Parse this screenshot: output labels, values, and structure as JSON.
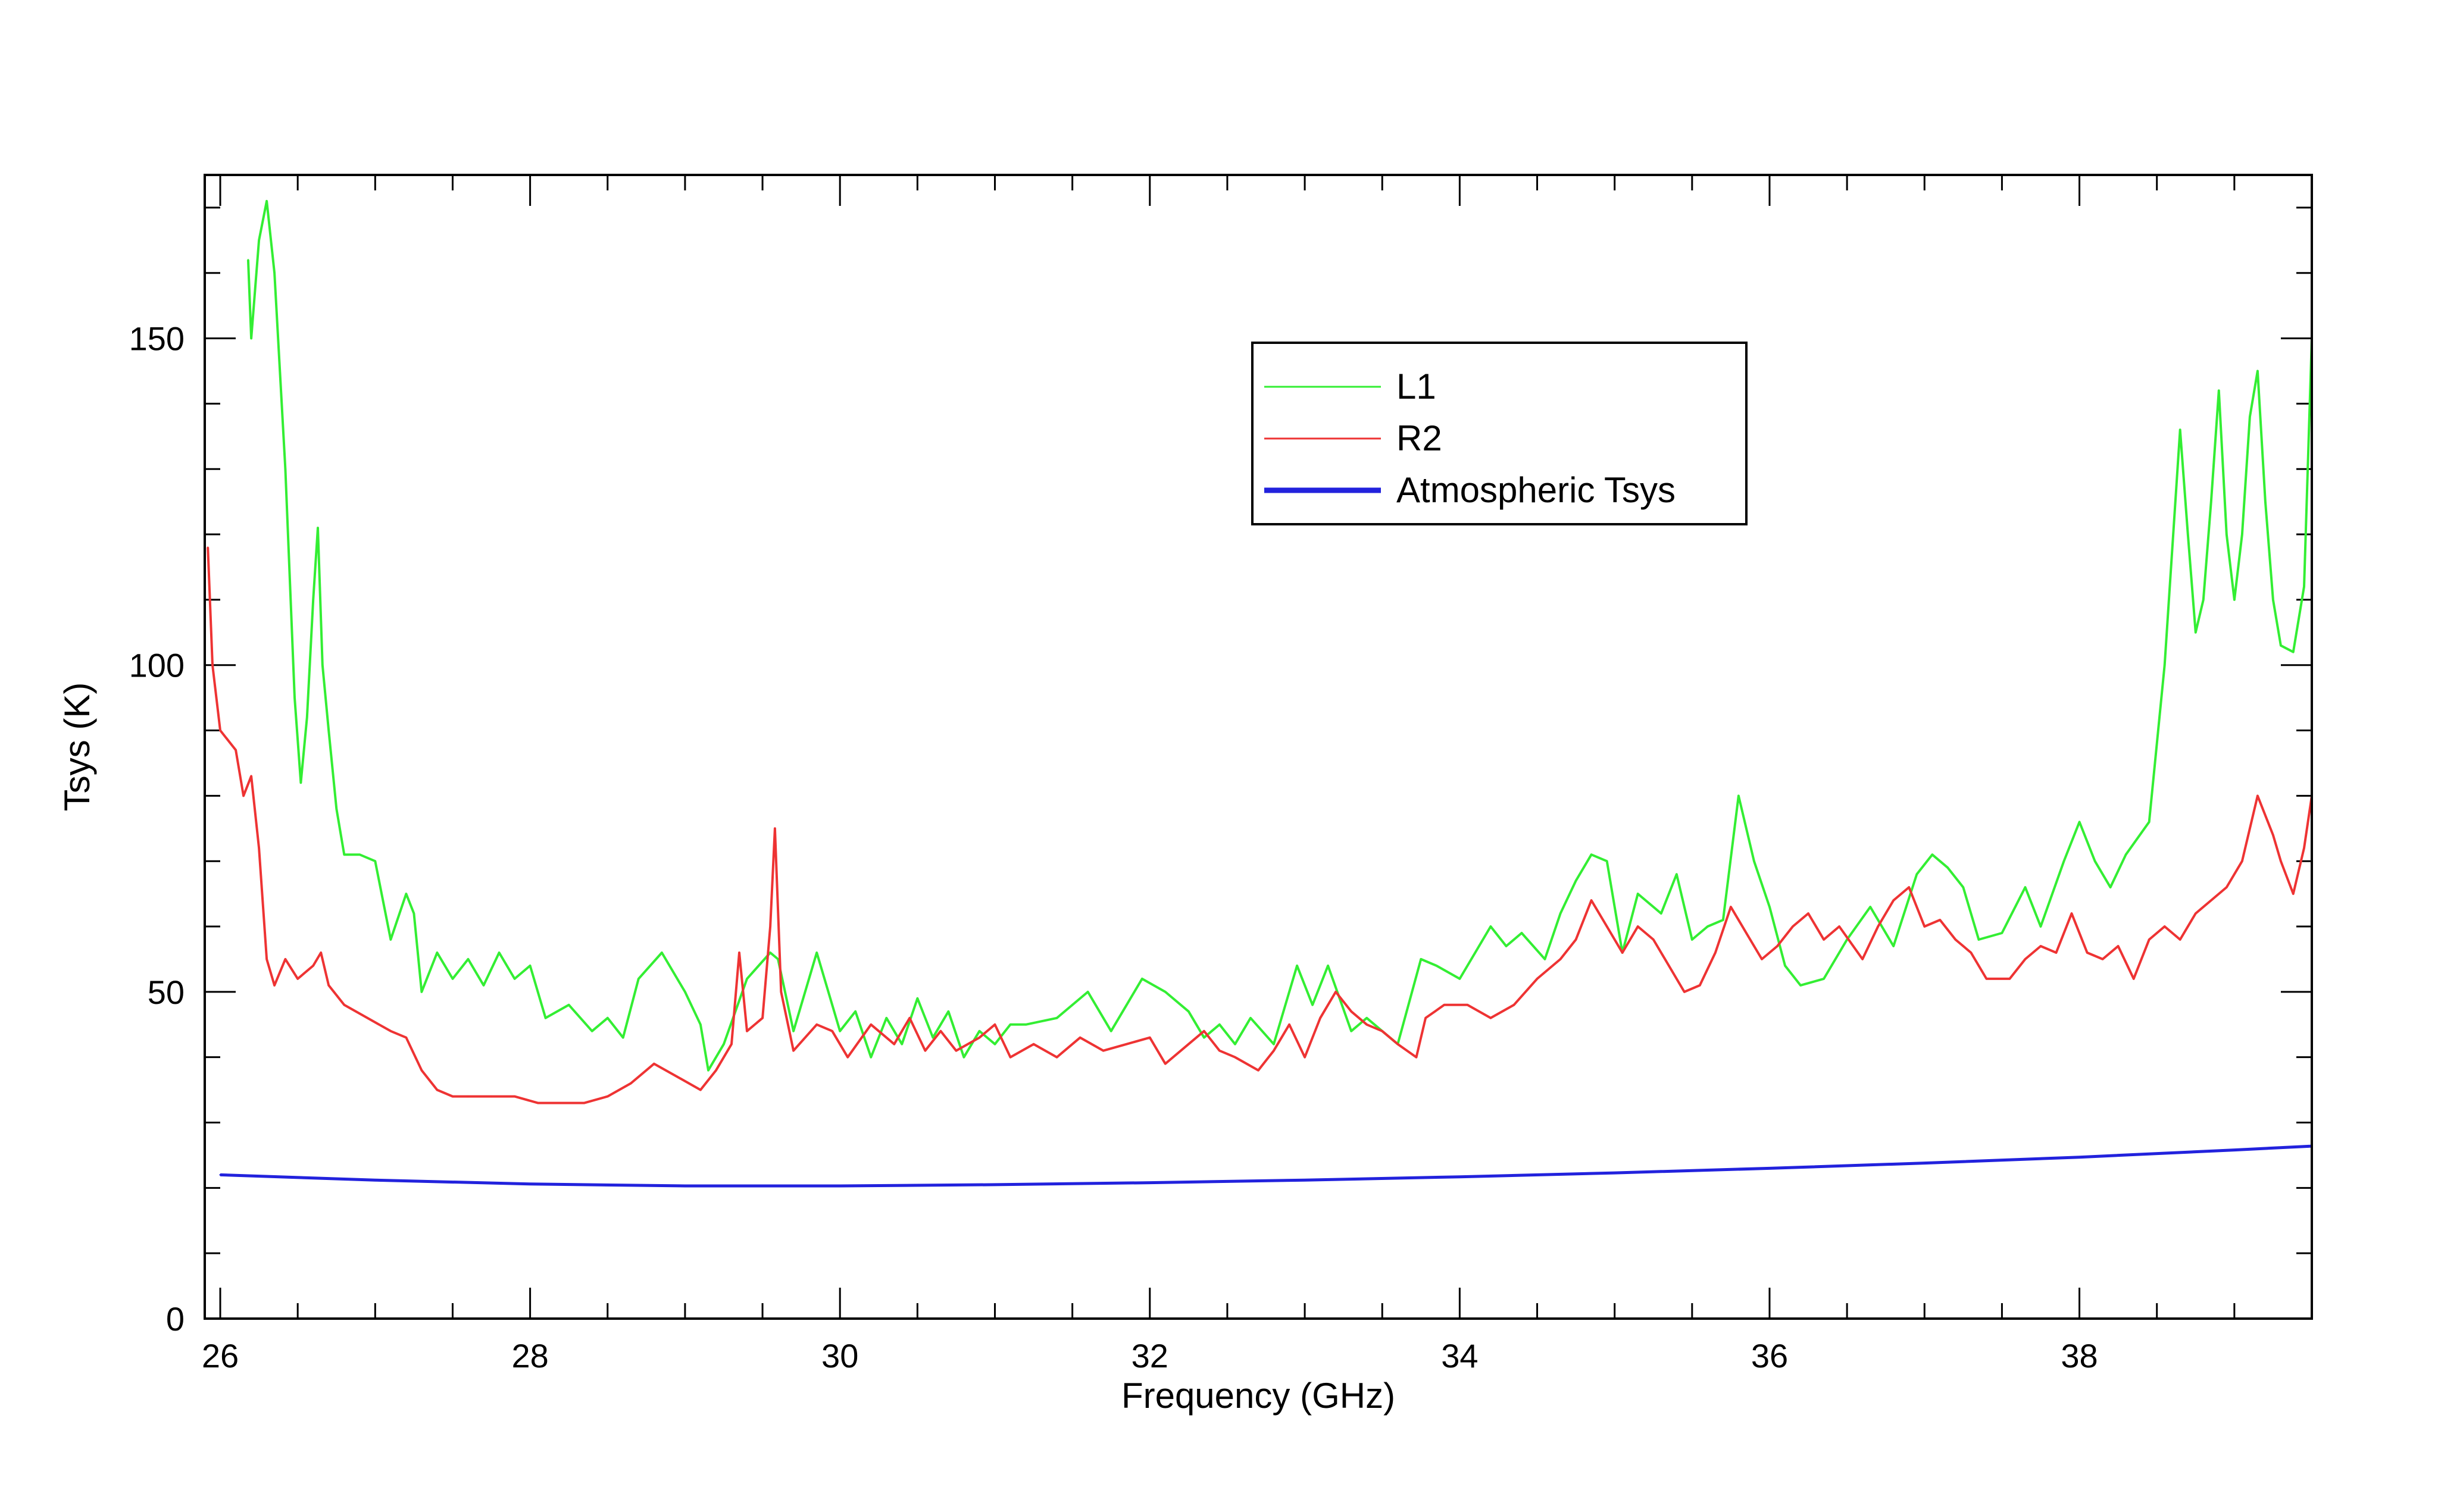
{
  "chart_data": {
    "type": "line",
    "title": "",
    "xlabel": "Frequency (GHz)",
    "ylabel": "Tsys (K)",
    "xlim": [
      25.9,
      39.5
    ],
    "ylim": [
      0,
      175
    ],
    "xticks": [
      26,
      28,
      30,
      32,
      34,
      36,
      38
    ],
    "yticks": [
      0,
      50,
      100,
      150
    ],
    "legend_position": "upper-center-right",
    "series": [
      {
        "name": "L1",
        "color": "#33ee33",
        "stroke": "thin",
        "points": [
          [
            26.18,
            162
          ],
          [
            26.2,
            150
          ],
          [
            26.25,
            165
          ],
          [
            26.3,
            171
          ],
          [
            26.35,
            160
          ],
          [
            26.42,
            130
          ],
          [
            26.48,
            95
          ],
          [
            26.52,
            82
          ],
          [
            26.56,
            92
          ],
          [
            26.6,
            110
          ],
          [
            26.63,
            121
          ],
          [
            26.66,
            100
          ],
          [
            26.7,
            90
          ],
          [
            26.75,
            78
          ],
          [
            26.8,
            71
          ],
          [
            26.9,
            71
          ],
          [
            27.0,
            70
          ],
          [
            27.1,
            58
          ],
          [
            27.2,
            65
          ],
          [
            27.25,
            62
          ],
          [
            27.3,
            50
          ],
          [
            27.4,
            56
          ],
          [
            27.5,
            52
          ],
          [
            27.6,
            55
          ],
          [
            27.7,
            51
          ],
          [
            27.8,
            56
          ],
          [
            27.9,
            52
          ],
          [
            28.0,
            54
          ],
          [
            28.1,
            46
          ],
          [
            28.25,
            48
          ],
          [
            28.4,
            44
          ],
          [
            28.5,
            46
          ],
          [
            28.6,
            43
          ],
          [
            28.7,
            52
          ],
          [
            28.85,
            56
          ],
          [
            29.0,
            50
          ],
          [
            29.1,
            45
          ],
          [
            29.15,
            38
          ],
          [
            29.25,
            42
          ],
          [
            29.4,
            52
          ],
          [
            29.55,
            56
          ],
          [
            29.6,
            55
          ],
          [
            29.7,
            44
          ],
          [
            29.85,
            56
          ],
          [
            29.95,
            48
          ],
          [
            30.0,
            44
          ],
          [
            30.1,
            47
          ],
          [
            30.2,
            40
          ],
          [
            30.3,
            46
          ],
          [
            30.4,
            42
          ],
          [
            30.5,
            49
          ],
          [
            30.6,
            43
          ],
          [
            30.7,
            47
          ],
          [
            30.8,
            40
          ],
          [
            30.9,
            44
          ],
          [
            31.0,
            42
          ],
          [
            31.1,
            45
          ],
          [
            31.2,
            45
          ],
          [
            31.4,
            46
          ],
          [
            31.6,
            50
          ],
          [
            31.75,
            44
          ],
          [
            31.85,
            48
          ],
          [
            31.95,
            52
          ],
          [
            32.1,
            50
          ],
          [
            32.25,
            47
          ],
          [
            32.35,
            43
          ],
          [
            32.45,
            45
          ],
          [
            32.55,
            42
          ],
          [
            32.65,
            46
          ],
          [
            32.8,
            42
          ],
          [
            32.95,
            54
          ],
          [
            33.05,
            48
          ],
          [
            33.15,
            54
          ],
          [
            33.3,
            44
          ],
          [
            33.4,
            46
          ],
          [
            33.5,
            44
          ],
          [
            33.6,
            42
          ],
          [
            33.75,
            55
          ],
          [
            33.85,
            54
          ],
          [
            34.0,
            52
          ],
          [
            34.1,
            56
          ],
          [
            34.2,
            60
          ],
          [
            34.3,
            57
          ],
          [
            34.4,
            59
          ],
          [
            34.55,
            55
          ],
          [
            34.65,
            62
          ],
          [
            34.75,
            67
          ],
          [
            34.85,
            71
          ],
          [
            34.95,
            70
          ],
          [
            35.05,
            56
          ],
          [
            35.15,
            65
          ],
          [
            35.3,
            62
          ],
          [
            35.4,
            68
          ],
          [
            35.5,
            58
          ],
          [
            35.6,
            60
          ],
          [
            35.7,
            61
          ],
          [
            35.8,
            80
          ],
          [
            35.9,
            70
          ],
          [
            36.0,
            63
          ],
          [
            36.1,
            54
          ],
          [
            36.2,
            51
          ],
          [
            36.35,
            52
          ],
          [
            36.5,
            58
          ],
          [
            36.65,
            63
          ],
          [
            36.8,
            57
          ],
          [
            36.95,
            68
          ],
          [
            37.05,
            71
          ],
          [
            37.15,
            69
          ],
          [
            37.25,
            66
          ],
          [
            37.35,
            58
          ],
          [
            37.5,
            59
          ],
          [
            37.65,
            66
          ],
          [
            37.75,
            60
          ],
          [
            37.9,
            70
          ],
          [
            38.0,
            76
          ],
          [
            38.1,
            70
          ],
          [
            38.2,
            66
          ],
          [
            38.3,
            71
          ],
          [
            38.45,
            76
          ],
          [
            38.55,
            100
          ],
          [
            38.65,
            136
          ],
          [
            38.7,
            120
          ],
          [
            38.75,
            105
          ],
          [
            38.8,
            110
          ],
          [
            38.85,
            125
          ],
          [
            38.9,
            142
          ],
          [
            38.95,
            120
          ],
          [
            39.0,
            110
          ],
          [
            39.05,
            120
          ],
          [
            39.1,
            138
          ],
          [
            39.15,
            145
          ],
          [
            39.2,
            125
          ],
          [
            39.25,
            110
          ],
          [
            39.3,
            103
          ],
          [
            39.38,
            102
          ],
          [
            39.45,
            112
          ],
          [
            39.5,
            150
          ]
        ]
      },
      {
        "name": "R2",
        "color": "#ee3333",
        "stroke": "thin",
        "points": [
          [
            25.92,
            118
          ],
          [
            25.95,
            100
          ],
          [
            26.0,
            90
          ],
          [
            26.1,
            87
          ],
          [
            26.15,
            80
          ],
          [
            26.2,
            83
          ],
          [
            26.25,
            72
          ],
          [
            26.3,
            55
          ],
          [
            26.35,
            51
          ],
          [
            26.42,
            55
          ],
          [
            26.5,
            52
          ],
          [
            26.6,
            54
          ],
          [
            26.65,
            56
          ],
          [
            26.7,
            51
          ],
          [
            26.8,
            48
          ],
          [
            26.95,
            46
          ],
          [
            27.1,
            44
          ],
          [
            27.2,
            43
          ],
          [
            27.3,
            38
          ],
          [
            27.4,
            35
          ],
          [
            27.5,
            34
          ],
          [
            27.6,
            34
          ],
          [
            27.75,
            34
          ],
          [
            27.9,
            34
          ],
          [
            28.05,
            33
          ],
          [
            28.2,
            33
          ],
          [
            28.35,
            33
          ],
          [
            28.5,
            34
          ],
          [
            28.65,
            36
          ],
          [
            28.8,
            39
          ],
          [
            28.95,
            37
          ],
          [
            29.1,
            35
          ],
          [
            29.2,
            38
          ],
          [
            29.3,
            42
          ],
          [
            29.35,
            56
          ],
          [
            29.4,
            44
          ],
          [
            29.5,
            46
          ],
          [
            29.55,
            60
          ],
          [
            29.58,
            75
          ],
          [
            29.62,
            50
          ],
          [
            29.7,
            41
          ],
          [
            29.85,
            45
          ],
          [
            29.95,
            44
          ],
          [
            30.05,
            40
          ],
          [
            30.2,
            45
          ],
          [
            30.35,
            42
          ],
          [
            30.45,
            46
          ],
          [
            30.55,
            41
          ],
          [
            30.65,
            44
          ],
          [
            30.75,
            41
          ],
          [
            30.9,
            43
          ],
          [
            31.0,
            45
          ],
          [
            31.1,
            40
          ],
          [
            31.25,
            42
          ],
          [
            31.4,
            40
          ],
          [
            31.55,
            43
          ],
          [
            31.7,
            41
          ],
          [
            31.85,
            42
          ],
          [
            32.0,
            43
          ],
          [
            32.1,
            39
          ],
          [
            32.25,
            42
          ],
          [
            32.35,
            44
          ],
          [
            32.45,
            41
          ],
          [
            32.55,
            40
          ],
          [
            32.7,
            38
          ],
          [
            32.8,
            41
          ],
          [
            32.9,
            45
          ],
          [
            33.0,
            40
          ],
          [
            33.1,
            46
          ],
          [
            33.2,
            50
          ],
          [
            33.3,
            47
          ],
          [
            33.4,
            45
          ],
          [
            33.5,
            44
          ],
          [
            33.6,
            42
          ],
          [
            33.72,
            40
          ],
          [
            33.78,
            46
          ],
          [
            33.9,
            48
          ],
          [
            34.05,
            48
          ],
          [
            34.2,
            46
          ],
          [
            34.35,
            48
          ],
          [
            34.5,
            52
          ],
          [
            34.65,
            55
          ],
          [
            34.75,
            58
          ],
          [
            34.85,
            64
          ],
          [
            34.95,
            60
          ],
          [
            35.05,
            56
          ],
          [
            35.15,
            60
          ],
          [
            35.25,
            58
          ],
          [
            35.35,
            54
          ],
          [
            35.45,
            50
          ],
          [
            35.55,
            51
          ],
          [
            35.65,
            56
          ],
          [
            35.75,
            63
          ],
          [
            35.85,
            59
          ],
          [
            35.95,
            55
          ],
          [
            36.05,
            57
          ],
          [
            36.15,
            60
          ],
          [
            36.25,
            62
          ],
          [
            36.35,
            58
          ],
          [
            36.45,
            60
          ],
          [
            36.6,
            55
          ],
          [
            36.7,
            60
          ],
          [
            36.8,
            64
          ],
          [
            36.9,
            66
          ],
          [
            37.0,
            60
          ],
          [
            37.1,
            61
          ],
          [
            37.2,
            58
          ],
          [
            37.3,
            56
          ],
          [
            37.4,
            52
          ],
          [
            37.55,
            52
          ],
          [
            37.65,
            55
          ],
          [
            37.75,
            57
          ],
          [
            37.85,
            56
          ],
          [
            37.95,
            62
          ],
          [
            38.05,
            56
          ],
          [
            38.15,
            55
          ],
          [
            38.25,
            57
          ],
          [
            38.35,
            52
          ],
          [
            38.45,
            58
          ],
          [
            38.55,
            60
          ],
          [
            38.65,
            58
          ],
          [
            38.75,
            62
          ],
          [
            38.85,
            64
          ],
          [
            38.95,
            66
          ],
          [
            39.05,
            70
          ],
          [
            39.15,
            80
          ],
          [
            39.25,
            74
          ],
          [
            39.3,
            70
          ],
          [
            39.38,
            65
          ],
          [
            39.45,
            72
          ],
          [
            39.5,
            80
          ]
        ]
      },
      {
        "name": "Atmospheric Tsys",
        "color": "#2222dd",
        "stroke": "thick",
        "points": [
          [
            26.0,
            22
          ],
          [
            27.0,
            21.2
          ],
          [
            28.0,
            20.6
          ],
          [
            29.0,
            20.3
          ],
          [
            30.0,
            20.3
          ],
          [
            31.0,
            20.5
          ],
          [
            32.0,
            20.8
          ],
          [
            33.0,
            21.2
          ],
          [
            34.0,
            21.7
          ],
          [
            35.0,
            22.3
          ],
          [
            36.0,
            23.0
          ],
          [
            37.0,
            23.8
          ],
          [
            38.0,
            24.7
          ],
          [
            39.0,
            25.8
          ],
          [
            39.5,
            26.4
          ]
        ]
      }
    ]
  }
}
